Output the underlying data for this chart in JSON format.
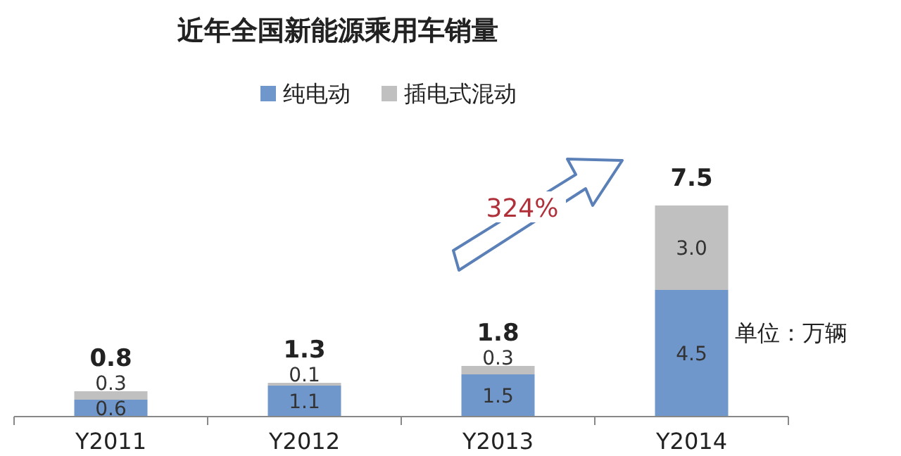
{
  "chart_data": {
    "type": "bar",
    "title": "近年全国新能源乘用车销量",
    "categories": [
      "Y2011",
      "Y2012",
      "Y2013",
      "Y2014"
    ],
    "stacked": true,
    "series": [
      {
        "name": "纯电动",
        "color": "#7097cb",
        "values": [
          0.6,
          1.1,
          1.5,
          4.5
        ],
        "value_labels": [
          "0.6",
          "1.1",
          "1.5",
          "4.5"
        ]
      },
      {
        "name": "插电式混动",
        "color": "#c0c0c0",
        "values": [
          0.3,
          0.1,
          0.3,
          3.0
        ],
        "value_labels": [
          "0.3",
          "0.1",
          "0.3",
          "3.0"
        ]
      }
    ],
    "totals": [
      "0.8",
      "1.3",
      "1.8",
      "7.5"
    ],
    "legend": "top",
    "grid": false,
    "annotations": [
      "324%",
      "单位：万辆"
    ]
  }
}
